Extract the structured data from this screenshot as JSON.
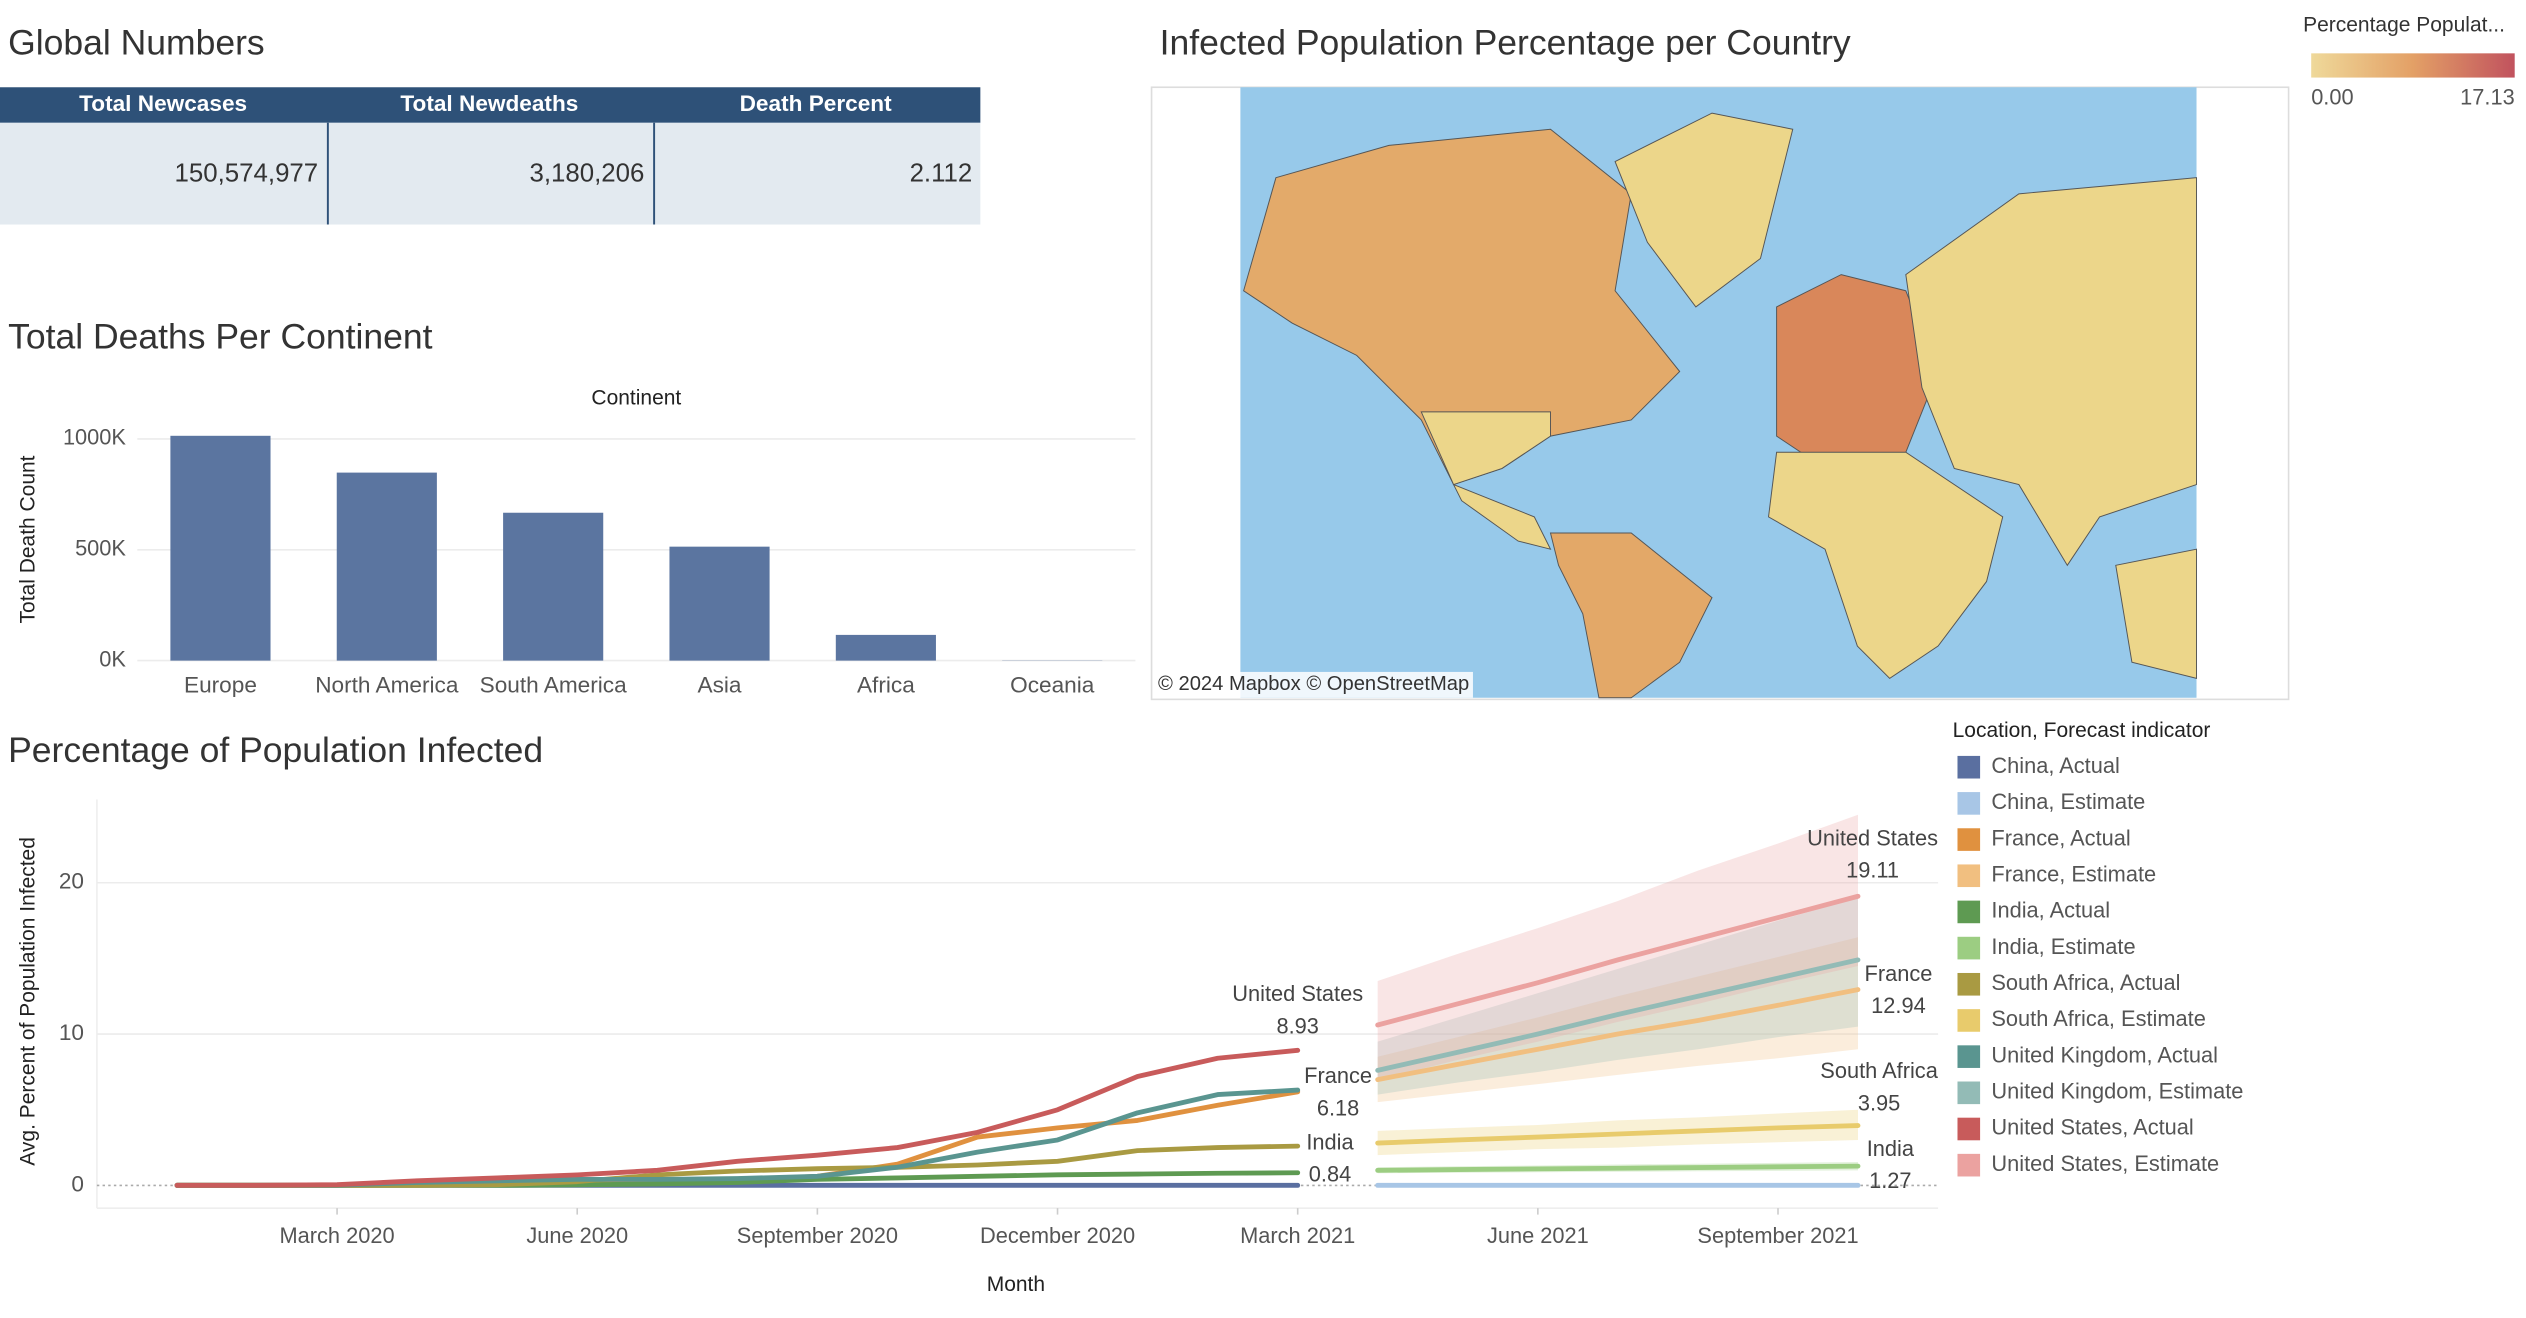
{
  "table": {
    "title": "Global Numbers",
    "columns": [
      "Total Newcases",
      "Total Newdeaths",
      "Death Percent"
    ],
    "rows": [
      [
        "150,574,977",
        "3,180,206",
        "2.112"
      ]
    ]
  },
  "map": {
    "title": "Infected Population Percentage per Country",
    "legend_title": "Percentage Populat...",
    "legend_min": "0.00",
    "legend_max": "17.13",
    "attribution": "© 2024 Mapbox © OpenStreetMap"
  },
  "chart_data": [
    {
      "type": "bar",
      "title": "Total Deaths Per Continent",
      "header": "Continent",
      "ylabel": "Total Death Count",
      "categories": [
        "Europe",
        "North America",
        "South America",
        "Asia",
        "Africa",
        "Oceania"
      ],
      "values": [
        1014000,
        848000,
        667000,
        514000,
        116000,
        1000
      ],
      "color": "#5b75a0",
      "ylim": [
        0,
        1100000
      ],
      "yticks": [
        {
          "value": 0,
          "label": "0K"
        },
        {
          "value": 500000,
          "label": "500K"
        },
        {
          "value": 1000000,
          "label": "1000K"
        }
      ],
      "grid": true
    },
    {
      "type": "line",
      "title": "Percentage of Population Infected",
      "xlabel": "Month",
      "ylabel": "Avg. Percent of Population Infected",
      "legend_title": "Location, Forecast indicator",
      "x": [
        "2020-01",
        "2020-02",
        "2020-03",
        "2020-04",
        "2020-05",
        "2020-06",
        "2020-07",
        "2020-08",
        "2020-09",
        "2020-10",
        "2020-11",
        "2020-12",
        "2021-01",
        "2021-02",
        "2021-03",
        "2021-04",
        "2021-05",
        "2021-06",
        "2021-07",
        "2021-08",
        "2021-09",
        "2021-10"
      ],
      "xlim": [
        "2019-12",
        "2021-11"
      ],
      "xticks": [
        {
          "value": "2020-03",
          "label": "March 2020"
        },
        {
          "value": "2020-06",
          "label": "June 2020"
        },
        {
          "value": "2020-09",
          "label": "September 2020"
        },
        {
          "value": "2020-12",
          "label": "December 2020"
        },
        {
          "value": "2021-03",
          "label": "March 2021"
        },
        {
          "value": "2021-06",
          "label": "June 2021"
        },
        {
          "value": "2021-09",
          "label": "September 2021"
        }
      ],
      "ylim": [
        -1.5,
        25.5
      ],
      "yticks": [
        0,
        10,
        20
      ],
      "grid": true,
      "series": [
        {
          "name": "China, Actual",
          "color": "#5a6fa0",
          "values": [
            0.01,
            0.01,
            0.01,
            0.01,
            0.01,
            0.01,
            0.01,
            0.01,
            0.01,
            0.01,
            0.01,
            0.01,
            0.01,
            0.01,
            0.01,
            null,
            null,
            null,
            null,
            null,
            null,
            null
          ]
        },
        {
          "name": "China, Estimate",
          "color": "#a8c6e6",
          "values": [
            null,
            null,
            null,
            null,
            null,
            null,
            null,
            null,
            null,
            null,
            null,
            null,
            null,
            null,
            null,
            0.01,
            0.01,
            0.01,
            0.01,
            0.01,
            0.01,
            0.01
          ]
        },
        {
          "name": "France, Actual",
          "color": "#e0913f",
          "values": [
            0,
            0,
            0.01,
            0.2,
            0.25,
            0.3,
            0.3,
            0.35,
            0.6,
            1.4,
            3.2,
            3.8,
            4.3,
            5.3,
            6.18,
            null,
            null,
            null,
            null,
            null,
            null,
            null
          ],
          "label": "France"
        },
        {
          "name": "France, Estimate",
          "color": "#f1bf80",
          "values": [
            null,
            null,
            null,
            null,
            null,
            null,
            null,
            null,
            null,
            null,
            null,
            null,
            null,
            null,
            null,
            7.0,
            8.0,
            9.0,
            10.0,
            10.9,
            11.9,
            12.94
          ],
          "lower": [
            null,
            null,
            null,
            null,
            null,
            null,
            null,
            null,
            null,
            null,
            null,
            null,
            null,
            null,
            null,
            5.5,
            6.1,
            6.7,
            7.3,
            7.9,
            8.4,
            9.0
          ],
          "upper": [
            null,
            null,
            null,
            null,
            null,
            null,
            null,
            null,
            null,
            null,
            null,
            null,
            null,
            null,
            null,
            8.5,
            9.8,
            11.1,
            12.5,
            13.8,
            15.1,
            16.4
          ],
          "label": "France"
        },
        {
          "name": "India, Actual",
          "color": "#5e9a52",
          "values": [
            0,
            0,
            0,
            0,
            0.01,
            0.04,
            0.1,
            0.2,
            0.4,
            0.5,
            0.6,
            0.7,
            0.75,
            0.8,
            0.84,
            null,
            null,
            null,
            null,
            null,
            null,
            null
          ],
          "label": "India"
        },
        {
          "name": "India, Estimate",
          "color": "#9ccd82",
          "values": [
            null,
            null,
            null,
            null,
            null,
            null,
            null,
            null,
            null,
            null,
            null,
            null,
            null,
            null,
            null,
            1.0,
            1.05,
            1.09,
            1.14,
            1.18,
            1.23,
            1.27
          ],
          "lower": [
            null,
            null,
            null,
            null,
            null,
            null,
            null,
            null,
            null,
            null,
            null,
            null,
            null,
            null,
            null,
            0.8,
            0.84,
            0.87,
            0.9,
            0.93,
            0.96,
            1.0
          ],
          "upper": [
            null,
            null,
            null,
            null,
            null,
            null,
            null,
            null,
            null,
            null,
            null,
            null,
            null,
            null,
            null,
            1.2,
            1.26,
            1.32,
            1.38,
            1.43,
            1.49,
            1.55
          ],
          "label": "India"
        },
        {
          "name": "South Africa, Actual",
          "color": "#a99a42",
          "values": [
            0,
            0,
            0,
            0.01,
            0.05,
            0.25,
            0.7,
            0.95,
            1.1,
            1.2,
            1.35,
            1.6,
            2.3,
            2.5,
            2.6,
            null,
            null,
            null,
            null,
            null,
            null,
            null
          ]
        },
        {
          "name": "South Africa, Estimate",
          "color": "#e8cb6c",
          "values": [
            null,
            null,
            null,
            null,
            null,
            null,
            null,
            null,
            null,
            null,
            null,
            null,
            null,
            null,
            null,
            2.8,
            3.0,
            3.2,
            3.4,
            3.6,
            3.8,
            3.95
          ],
          "lower": [
            null,
            null,
            null,
            null,
            null,
            null,
            null,
            null,
            null,
            null,
            null,
            null,
            null,
            null,
            null,
            2.0,
            2.2,
            2.4,
            2.5,
            2.7,
            2.85,
            3.0
          ],
          "upper": [
            null,
            null,
            null,
            null,
            null,
            null,
            null,
            null,
            null,
            null,
            null,
            null,
            null,
            null,
            null,
            3.6,
            3.8,
            4.0,
            4.3,
            4.5,
            4.75,
            5.0
          ],
          "label": "South Africa"
        },
        {
          "name": "United Kingdom, Actual",
          "color": "#5a9590",
          "values": [
            0,
            0,
            0.02,
            0.2,
            0.3,
            0.4,
            0.4,
            0.45,
            0.6,
            1.2,
            2.2,
            3.0,
            4.8,
            6.0,
            6.3,
            null,
            null,
            null,
            null,
            null,
            null,
            null
          ]
        },
        {
          "name": "United Kingdom, Estimate",
          "color": "#93bbb6",
          "values": [
            null,
            null,
            null,
            null,
            null,
            null,
            null,
            null,
            null,
            null,
            null,
            null,
            null,
            null,
            null,
            7.6,
            8.8,
            10.0,
            11.3,
            12.5,
            13.7,
            14.9
          ],
          "lower": [
            null,
            null,
            null,
            null,
            null,
            null,
            null,
            null,
            null,
            null,
            null,
            null,
            null,
            null,
            null,
            6.0,
            6.8,
            7.5,
            8.3,
            9.0,
            9.8,
            10.5
          ],
          "upper": [
            null,
            null,
            null,
            null,
            null,
            null,
            null,
            null,
            null,
            null,
            null,
            null,
            null,
            null,
            null,
            9.5,
            11.1,
            12.7,
            14.3,
            15.9,
            17.5,
            19.0
          ]
        },
        {
          "name": "United States, Actual",
          "color": "#c85b5b",
          "values": [
            0,
            0,
            0.05,
            0.3,
            0.5,
            0.7,
            1.0,
            1.6,
            2.0,
            2.5,
            3.5,
            5.0,
            7.2,
            8.4,
            8.93,
            null,
            null,
            null,
            null,
            null,
            null,
            null
          ],
          "label": "United States"
        },
        {
          "name": "United States, Estimate",
          "color": "#eba2a0",
          "values": [
            null,
            null,
            null,
            null,
            null,
            null,
            null,
            null,
            null,
            null,
            null,
            null,
            null,
            null,
            null,
            10.6,
            12.0,
            13.4,
            14.9,
            16.3,
            17.7,
            19.11
          ],
          "lower": [
            null,
            null,
            null,
            null,
            null,
            null,
            null,
            null,
            null,
            null,
            null,
            null,
            null,
            null,
            null,
            7.0,
            8.3,
            9.5,
            10.8,
            12.0,
            13.3,
            14.5
          ],
          "upper": [
            null,
            null,
            null,
            null,
            null,
            null,
            null,
            null,
            null,
            null,
            null,
            null,
            null,
            null,
            null,
            13.5,
            15.3,
            17.0,
            18.8,
            20.8,
            22.6,
            24.5
          ],
          "label": "United States"
        }
      ]
    }
  ]
}
